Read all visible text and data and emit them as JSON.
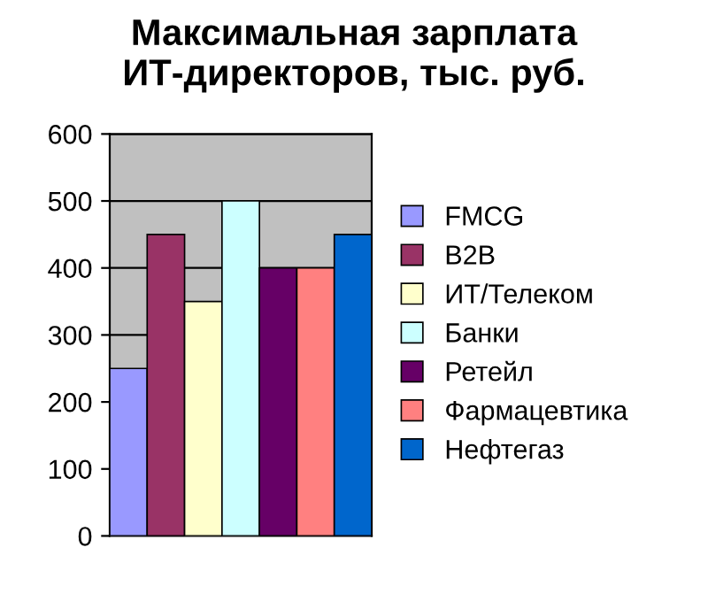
{
  "chart_data": {
    "type": "bar",
    "title": "Максимальная зарплата\nИТ-директоров, тыс. руб.",
    "categories": [
      null
    ],
    "series": [
      {
        "name": "FMCG",
        "color": "#9999ff",
        "values": [
          250
        ]
      },
      {
        "name": "B2B",
        "color": "#993366",
        "values": [
          450
        ]
      },
      {
        "name": "ИТ/Телеком",
        "color": "#ffffcc",
        "values": [
          350
        ]
      },
      {
        "name": "Банки",
        "color": "#ccffff",
        "values": [
          500
        ]
      },
      {
        "name": "Ретейл",
        "color": "#660066",
        "values": [
          400
        ]
      },
      {
        "name": "Фармацевтика",
        "color": "#ff8080",
        "values": [
          400
        ]
      },
      {
        "name": "Нефтегаз",
        "color": "#0066cc",
        "values": [
          450
        ]
      }
    ],
    "ylim": [
      0,
      600
    ],
    "yticks": [
      0,
      100,
      200,
      300,
      400,
      500,
      600
    ],
    "grid": "y",
    "legend": "right",
    "tick_labels": "y"
  }
}
